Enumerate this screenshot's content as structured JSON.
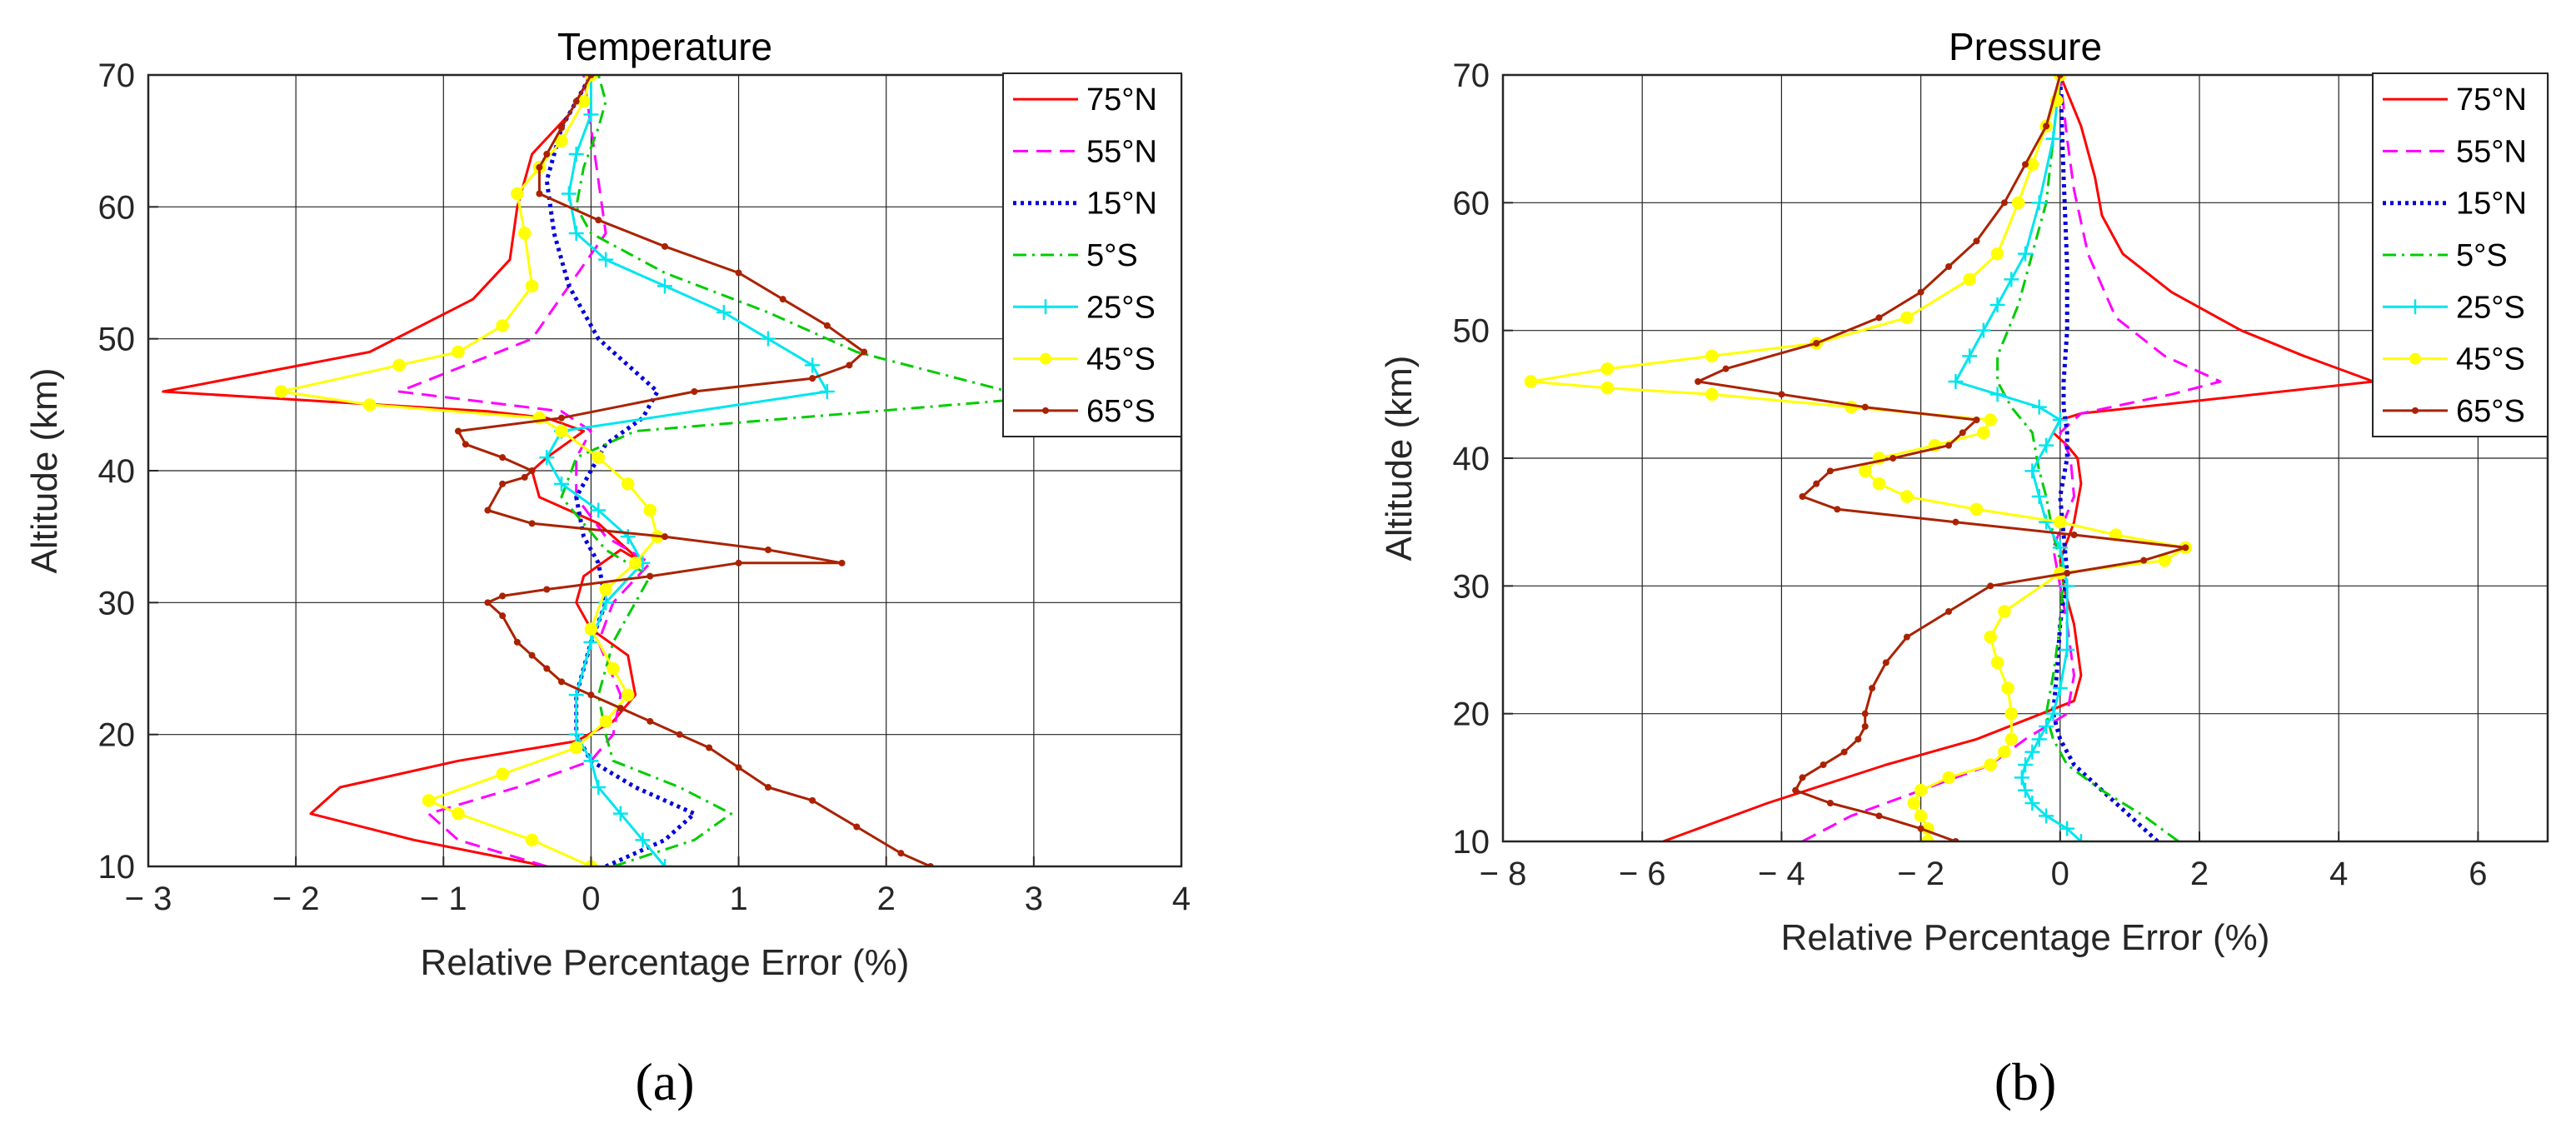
{
  "chart_data": [
    {
      "type": "line",
      "panel_label": "(a)",
      "title": "Temperature",
      "xlabel": "Relative Percentage Error (%)",
      "ylabel": "Altitude (km)",
      "xlim": [
        -3,
        4
      ],
      "ylim": [
        10,
        70
      ],
      "xticks": [
        -3,
        -2,
        -1,
        0,
        1,
        2,
        3,
        4
      ],
      "xtick_labels": [
        "− 3",
        "− 2",
        "− 1",
        "0",
        "1",
        "2",
        "3",
        "4"
      ],
      "yticks": [
        10,
        20,
        30,
        40,
        50,
        60,
        70
      ],
      "ytick_labels": [
        "10",
        "20",
        "30",
        "40",
        "50",
        "60",
        "70"
      ],
      "grid": true,
      "legend_position": "top-right",
      "series": [
        {
          "name": "75°N",
          "color": "#ff0000",
          "style": "solid",
          "marker": "none",
          "x": [
            -0.3,
            -1.2,
            -1.9,
            -1.7,
            -0.9,
            -0.1,
            0.15,
            0.3,
            0.25,
            0,
            -0.1,
            -0.05,
            0.2,
            0.35,
            0.05,
            -0.35,
            -0.4,
            -0.3,
            -0.05,
            -0.3,
            -0.7,
            -2.9,
            -1.5,
            -0.8,
            -0.55,
            -0.5,
            -0.4,
            -0.15,
            0
          ],
          "y": [
            10,
            12,
            14,
            16,
            18,
            19.5,
            21,
            23,
            26,
            28,
            30,
            32,
            34,
            33,
            36,
            38,
            40,
            41,
            43,
            44,
            44.5,
            46,
            49,
            53,
            56,
            60,
            64,
            67,
            70
          ]
        },
        {
          "name": "55°N",
          "color": "#ff00ff",
          "style": "dashed",
          "marker": "none",
          "x": [
            -0.3,
            -0.9,
            -1.1,
            -0.5,
            0,
            0.15,
            0.2,
            0.05,
            0.15,
            0.4,
            0.1,
            -0.1,
            -0.1,
            0,
            -0.2,
            -1.3,
            -0.4,
            -0.15,
            0.1,
            0.05,
            0,
            -0.05
          ],
          "y": [
            10,
            12,
            14,
            16,
            18,
            20,
            23,
            27,
            30,
            33,
            35,
            38,
            41,
            43,
            44.5,
            46,
            50,
            54,
            58,
            62,
            66,
            70
          ]
        },
        {
          "name": "15°N",
          "color": "#0000dd",
          "style": "dotted",
          "marker": "none",
          "x": [
            0.1,
            0.5,
            0.7,
            0.3,
            0,
            -0.1,
            -0.1,
            0,
            0.1,
            0.05,
            -0.05,
            -0.1,
            0,
            0.1,
            0.35,
            0.45,
            0.25,
            0.05,
            -0.15,
            -0.25,
            -0.3,
            -0.2,
            0
          ],
          "y": [
            10,
            12,
            14,
            16,
            18,
            20,
            23,
            27,
            30,
            33,
            35,
            38,
            40,
            42,
            44,
            46,
            48,
            50,
            54,
            58,
            62,
            66,
            70
          ]
        },
        {
          "name": "5°S",
          "color": "#00cc00",
          "style": "dashdot",
          "marker": "none",
          "x": [
            0.15,
            0.7,
            0.95,
            0.6,
            0.15,
            0.1,
            0.05,
            0.15,
            0.3,
            0.4,
            0.1,
            -0.2,
            -0.1,
            0.3,
            3.0,
            1.8,
            1.2,
            0.5,
            0,
            -0.1,
            -0.05,
            0.05,
            0.1,
            0.05
          ],
          "y": [
            10,
            12,
            14,
            16,
            18,
            20,
            23,
            27,
            30,
            32,
            34,
            38,
            41,
            43,
            45.5,
            49,
            52,
            55,
            58,
            60,
            63,
            66,
            68,
            70
          ]
        },
        {
          "name": "25°S",
          "color": "#00e5ee",
          "style": "solid",
          "marker": "plus",
          "x": [
            0.5,
            0.35,
            0.2,
            0.05,
            0,
            -0.1,
            -0.1,
            0,
            0.1,
            0.35,
            0.25,
            0.05,
            -0.2,
            -0.3,
            -0.2,
            1.6,
            1.5,
            1.2,
            0.9,
            0.5,
            0.1,
            -0.1,
            -0.15,
            -0.1,
            0,
            0
          ],
          "y": [
            10,
            12,
            14,
            16,
            18,
            20,
            23,
            27,
            30,
            33,
            35,
            37,
            39,
            41,
            43,
            46,
            48,
            50,
            52,
            54,
            56,
            58,
            61,
            64,
            67,
            70
          ]
        },
        {
          "name": "45°S",
          "color": "#ffff00",
          "style": "solid",
          "marker": "circle",
          "x": [
            0,
            -0.4,
            -0.9,
            -1.1,
            -0.6,
            -0.1,
            0.1,
            0.25,
            0.15,
            0,
            0.1,
            0.3,
            0.45,
            0.4,
            0.25,
            0.05,
            -0.2,
            -0.35,
            -1.5,
            -2.1,
            -1.3,
            -0.9,
            -0.6,
            -0.4,
            -0.45,
            -0.5,
            -0.35,
            -0.2,
            -0.05,
            0
          ],
          "y": [
            10,
            12,
            14,
            15,
            17,
            19,
            21,
            23,
            25,
            28,
            31,
            33,
            35,
            37,
            39,
            41,
            43,
            44,
            45,
            46,
            48,
            49,
            51,
            54,
            58,
            61,
            63,
            65,
            68,
            70
          ]
        },
        {
          "name": "65°S",
          "color": "#aa2200",
          "style": "solid",
          "marker": "dot",
          "x": [
            2.3,
            2.1,
            1.8,
            1.5,
            1.2,
            1.0,
            0.8,
            0.6,
            0.4,
            0.2,
            0,
            -0.2,
            -0.3,
            -0.4,
            -0.5,
            -0.6,
            -0.7,
            -0.6,
            -0.3,
            0.4,
            1.0,
            1.7,
            1.2,
            0.5,
            -0.4,
            -0.7,
            -0.6,
            -0.45,
            -0.4,
            -0.6,
            -0.85,
            -0.9,
            -0.2,
            0.7,
            1.5,
            1.75,
            1.85,
            1.6,
            1.3,
            1.0,
            0.5,
            0.05,
            -0.35,
            -0.35,
            -0.3,
            -0.2,
            -0.1,
            0
          ],
          "y": [
            10,
            11,
            13,
            15,
            16,
            17.5,
            19,
            20,
            21,
            22,
            23,
            24,
            25,
            26,
            27,
            29,
            30,
            30.5,
            31,
            32,
            33,
            33,
            34,
            35,
            36,
            37,
            39,
            39.5,
            40,
            41,
            42,
            43,
            44,
            46,
            47,
            48,
            49,
            51,
            53,
            55,
            57,
            59,
            61,
            63,
            64,
            66,
            68,
            70
          ]
        }
      ]
    },
    {
      "type": "line",
      "panel_label": "(b)",
      "title": "Pressure",
      "xlabel": "Relative Percentage Error (%)",
      "ylabel": "Altitude (km)",
      "xlim": [
        -8,
        7
      ],
      "ylim": [
        10,
        70
      ],
      "xticks": [
        -8,
        -6,
        -4,
        -2,
        0,
        2,
        4,
        6
      ],
      "xtick_labels": [
        "− 8",
        "− 6",
        "− 4",
        "− 2",
        "0",
        "2",
        "4",
        "6"
      ],
      "yticks": [
        10,
        20,
        30,
        40,
        50,
        60,
        70
      ],
      "ytick_labels": [
        "10",
        "20",
        "30",
        "40",
        "50",
        "60",
        "70"
      ],
      "grid": true,
      "legend_position": "top-right",
      "series": [
        {
          "name": "75°N",
          "color": "#ff0000",
          "style": "solid",
          "marker": "none",
          "x": [
            -5.7,
            -5.2,
            -4.2,
            -2.5,
            -1.2,
            -0.5,
            0.2,
            0.3,
            0.2,
            0.05,
            0,
            0.2,
            0.3,
            0.25,
            0.1,
            -0.1,
            0,
            0.3,
            4.5,
            3.5,
            2.6,
            1.6,
            0.9,
            0.6,
            0.5,
            0.3,
            0
          ],
          "y": [
            10,
            11,
            13,
            16,
            18,
            19.5,
            21,
            23,
            27,
            30,
            32,
            35,
            38,
            40,
            41,
            42,
            43,
            43.5,
            46,
            48,
            50,
            53,
            56,
            59,
            62,
            66,
            70
          ]
        },
        {
          "name": "55°N",
          "color": "#ff00ff",
          "style": "dashed",
          "marker": "none",
          "x": [
            -3.7,
            -3.0,
            -2.0,
            -1.0,
            -0.5,
            0.1,
            0.2,
            0.1,
            0,
            -0.1,
            0.05,
            0.2,
            0.15,
            0,
            0.3,
            1.6,
            2.3,
            1.5,
            0.8,
            0.4,
            0.2,
            0.1,
            0
          ],
          "y": [
            10,
            12,
            14,
            16,
            18,
            20,
            23,
            27,
            30,
            33,
            35,
            37,
            40,
            42,
            43.5,
            45,
            46,
            48,
            51,
            56,
            61,
            65,
            70
          ]
        },
        {
          "name": "15°N",
          "color": "#0000dd",
          "style": "dotted",
          "marker": "none",
          "x": [
            1.4,
            1.0,
            0.6,
            0.2,
            0,
            -0.1,
            -0.05,
            0,
            0.1,
            0.05,
            0,
            0.1,
            0.1,
            0.05,
            0.05,
            0.1,
            0.1,
            0.05,
            0
          ],
          "y": [
            10,
            12,
            14,
            16,
            18,
            20,
            23,
            27,
            31,
            34,
            37,
            40,
            42,
            44,
            46,
            50,
            55,
            62,
            70
          ]
        },
        {
          "name": "5°S",
          "color": "#00cc00",
          "style": "dashdot",
          "marker": "none",
          "x": [
            1.7,
            1.2,
            0.6,
            0.1,
            -0.1,
            -0.2,
            -0.1,
            0,
            0.05,
            -0.1,
            -0.2,
            -0.3,
            -0.4,
            -0.7,
            -0.9,
            -0.9,
            -0.6,
            -0.2,
            0
          ],
          "y": [
            10,
            12,
            14,
            16,
            18,
            20,
            23,
            27,
            31,
            34,
            37,
            39,
            42,
            44,
            46,
            48,
            52,
            60,
            70
          ]
        },
        {
          "name": "25°S",
          "color": "#00e5ee",
          "style": "solid",
          "marker": "plus",
          "x": [
            0.3,
            0.1,
            -0.2,
            -0.4,
            -0.5,
            -0.55,
            -0.5,
            -0.4,
            -0.3,
            -0.2,
            -0.1,
            0,
            0.1,
            0.1,
            0,
            -0.2,
            -0.3,
            -0.4,
            -0.2,
            0,
            -0.3,
            -0.9,
            -1.5,
            -1.3,
            -1.1,
            -0.9,
            -0.7,
            -0.5,
            -0.3,
            -0.1,
            0
          ],
          "y": [
            10,
            11,
            12,
            13,
            14,
            15,
            16,
            17,
            18,
            19,
            20,
            22,
            25,
            30,
            33,
            35,
            37,
            39,
            41,
            43,
            44,
            45,
            46,
            48,
            50,
            52,
            54,
            56,
            60,
            65,
            70
          ]
        },
        {
          "name": "45°S",
          "color": "#ffff00",
          "style": "solid",
          "marker": "circle",
          "x": [
            -1.9,
            -1.9,
            -2.0,
            -2.1,
            -2.0,
            -1.6,
            -1.0,
            -0.8,
            -0.7,
            -0.7,
            -0.75,
            -0.9,
            -1.0,
            -0.8,
            0,
            1.5,
            1.8,
            0.8,
            0,
            -1.2,
            -2.2,
            -2.6,
            -2.8,
            -2.6,
            -1.8,
            -1.1,
            -1.0,
            -3.0,
            -5.0,
            -6.5,
            -7.6,
            -6.5,
            -5.0,
            -3.5,
            -2.2,
            -1.3,
            -0.9,
            -0.6,
            -0.4,
            -0.2,
            -0.05,
            0
          ],
          "y": [
            10,
            11,
            12,
            13,
            14,
            15,
            16,
            17,
            18,
            20,
            22,
            24,
            26,
            28,
            31,
            32,
            33,
            34,
            35,
            36,
            37,
            38,
            39,
            40,
            41,
            42,
            43,
            44,
            45,
            45.5,
            46,
            47,
            48,
            49,
            51,
            54,
            56,
            60,
            63,
            66,
            68,
            70
          ]
        },
        {
          "name": "65°S",
          "color": "#aa2200",
          "style": "solid",
          "marker": "dot",
          "x": [
            -1.5,
            -2.0,
            -2.6,
            -3.3,
            -3.8,
            -3.7,
            -3.4,
            -3.1,
            -2.9,
            -2.8,
            -2.8,
            -2.7,
            -2.5,
            -2.2,
            -1.6,
            -1.0,
            0.1,
            1.2,
            1.8,
            0.2,
            -1.5,
            -3.2,
            -3.7,
            -3.5,
            -3.3,
            -2.4,
            -1.6,
            -1.4,
            -1.2,
            -2.8,
            -4.0,
            -5.2,
            -4.8,
            -3.5,
            -2.6,
            -2.0,
            -1.6,
            -1.2,
            -0.8,
            -0.5,
            -0.2,
            0
          ],
          "y": [
            10,
            11,
            12,
            13,
            14,
            15,
            16,
            17,
            18,
            19,
            20,
            22,
            24,
            26,
            28,
            30,
            31,
            32,
            33,
            34,
            35,
            36,
            37,
            38,
            39,
            40,
            41,
            42,
            43,
            44,
            45,
            46,
            47,
            49,
            51,
            53,
            55,
            57,
            60,
            63,
            66,
            70
          ]
        }
      ]
    }
  ]
}
